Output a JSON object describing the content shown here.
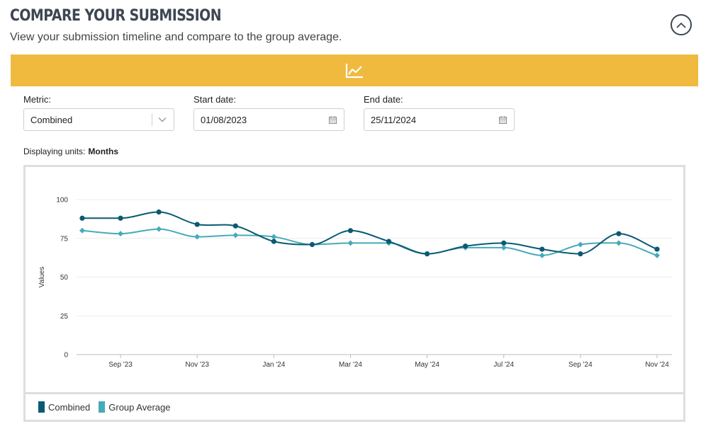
{
  "header": {
    "title": "COMPARE YOUR SUBMISSION",
    "subtitle": "View your submission timeline and compare to the group average.",
    "collapse_icon": "chevron-up-icon"
  },
  "banner": {
    "color": "#efba3e",
    "icon": "line-chart-icon"
  },
  "filters": {
    "metric": {
      "label": "Metric:",
      "value": "Combined",
      "icon": "chevron-down-icon"
    },
    "start_date": {
      "label": "Start date:",
      "value": "01/08/2023",
      "icon": "calendar-icon"
    },
    "end_date": {
      "label": "End date:",
      "value": "25/11/2024",
      "icon": "calendar-icon"
    }
  },
  "units": {
    "label": "Displaying units:",
    "value": "Months"
  },
  "chart_data": {
    "type": "line",
    "ylabel": "Values",
    "xlabel": "",
    "ylim": [
      0,
      100
    ],
    "yticks": [
      0,
      25,
      50,
      75,
      100
    ],
    "grid": "horizontal",
    "legend_position": "bottom-left",
    "x": [
      "Aug '23",
      "Sep '23",
      "Oct '23",
      "Nov '23",
      "Dec '23",
      "Jan '24",
      "Feb '24",
      "Mar '24",
      "Apr '24",
      "May '24",
      "Jun '24",
      "Jul '24",
      "Aug '24",
      "Sep '24",
      "Oct '24",
      "Nov '24"
    ],
    "x_tick_labels": [
      "Sep '23",
      "Nov '23",
      "Jan '24",
      "Mar '24",
      "May '24",
      "Jul '24",
      "Sep '24",
      "Nov '24"
    ],
    "series": [
      {
        "name": "Combined",
        "color": "#0b5a73",
        "marker": "circle",
        "values": [
          88,
          88,
          92,
          84,
          83,
          73,
          71,
          80,
          73,
          65,
          70,
          72,
          68,
          65,
          78,
          68
        ]
      },
      {
        "name": "Group Average",
        "color": "#46abb8",
        "marker": "diamond",
        "values": [
          80,
          78,
          81,
          76,
          77,
          76,
          71,
          72,
          72,
          65,
          69,
          69,
          64,
          71,
          72,
          64
        ]
      }
    ]
  }
}
